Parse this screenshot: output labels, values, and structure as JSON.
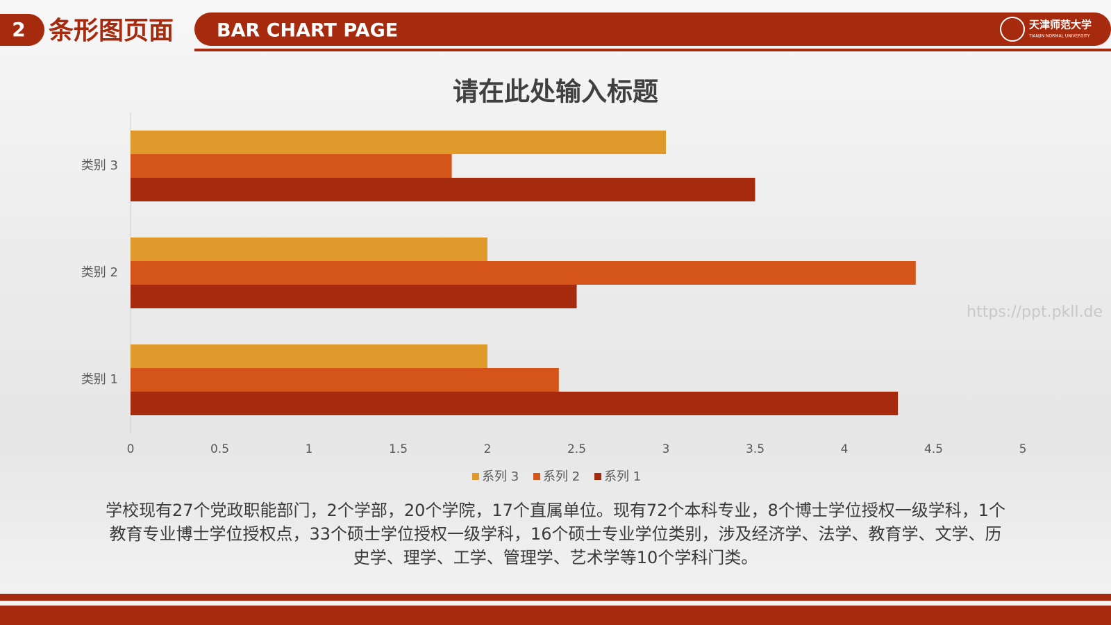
{
  "header": {
    "number": "2",
    "title": "条形图页面",
    "subtitle": "BAR CHART PAGE",
    "logo_name": "天津师范大学",
    "logo_english": "TIANJIN NORMAL UNIVERSITY"
  },
  "chart_data": {
    "type": "bar",
    "orientation": "horizontal",
    "title": "请在此处输入标题",
    "categories": [
      "类别 1",
      "类别 2",
      "类别 3"
    ],
    "series": [
      {
        "name": "系列 1",
        "color": "#a52a0e",
        "values": [
          4.3,
          2.5,
          3.5
        ]
      },
      {
        "name": "系列 2",
        "color": "#d4541a",
        "values": [
          2.4,
          4.4,
          1.8
        ]
      },
      {
        "name": "系列 3",
        "color": "#e09a2b",
        "values": [
          2,
          2,
          3
        ]
      }
    ],
    "xlim": [
      0,
      5
    ],
    "xticks": [
      0,
      0.5,
      1,
      1.5,
      2,
      2.5,
      3,
      3.5,
      4,
      4.5,
      5
    ],
    "legend": "bottom"
  },
  "body": {
    "paragraph": "学校现有27个党政职能部门，2个学部，20个学院，17个直属单位。现有72个本科专业，8个博士学位授权一级学科，1个教育专业博士学位授权点，33个硕士学位授权一级学科，16个硕士专业学位类别，涉及经济学、法学、教育学、文学、历史学、理学、工学、管理学、艺术学等10个学科门类。",
    "watermark": "https://ppt.pkll.de"
  }
}
